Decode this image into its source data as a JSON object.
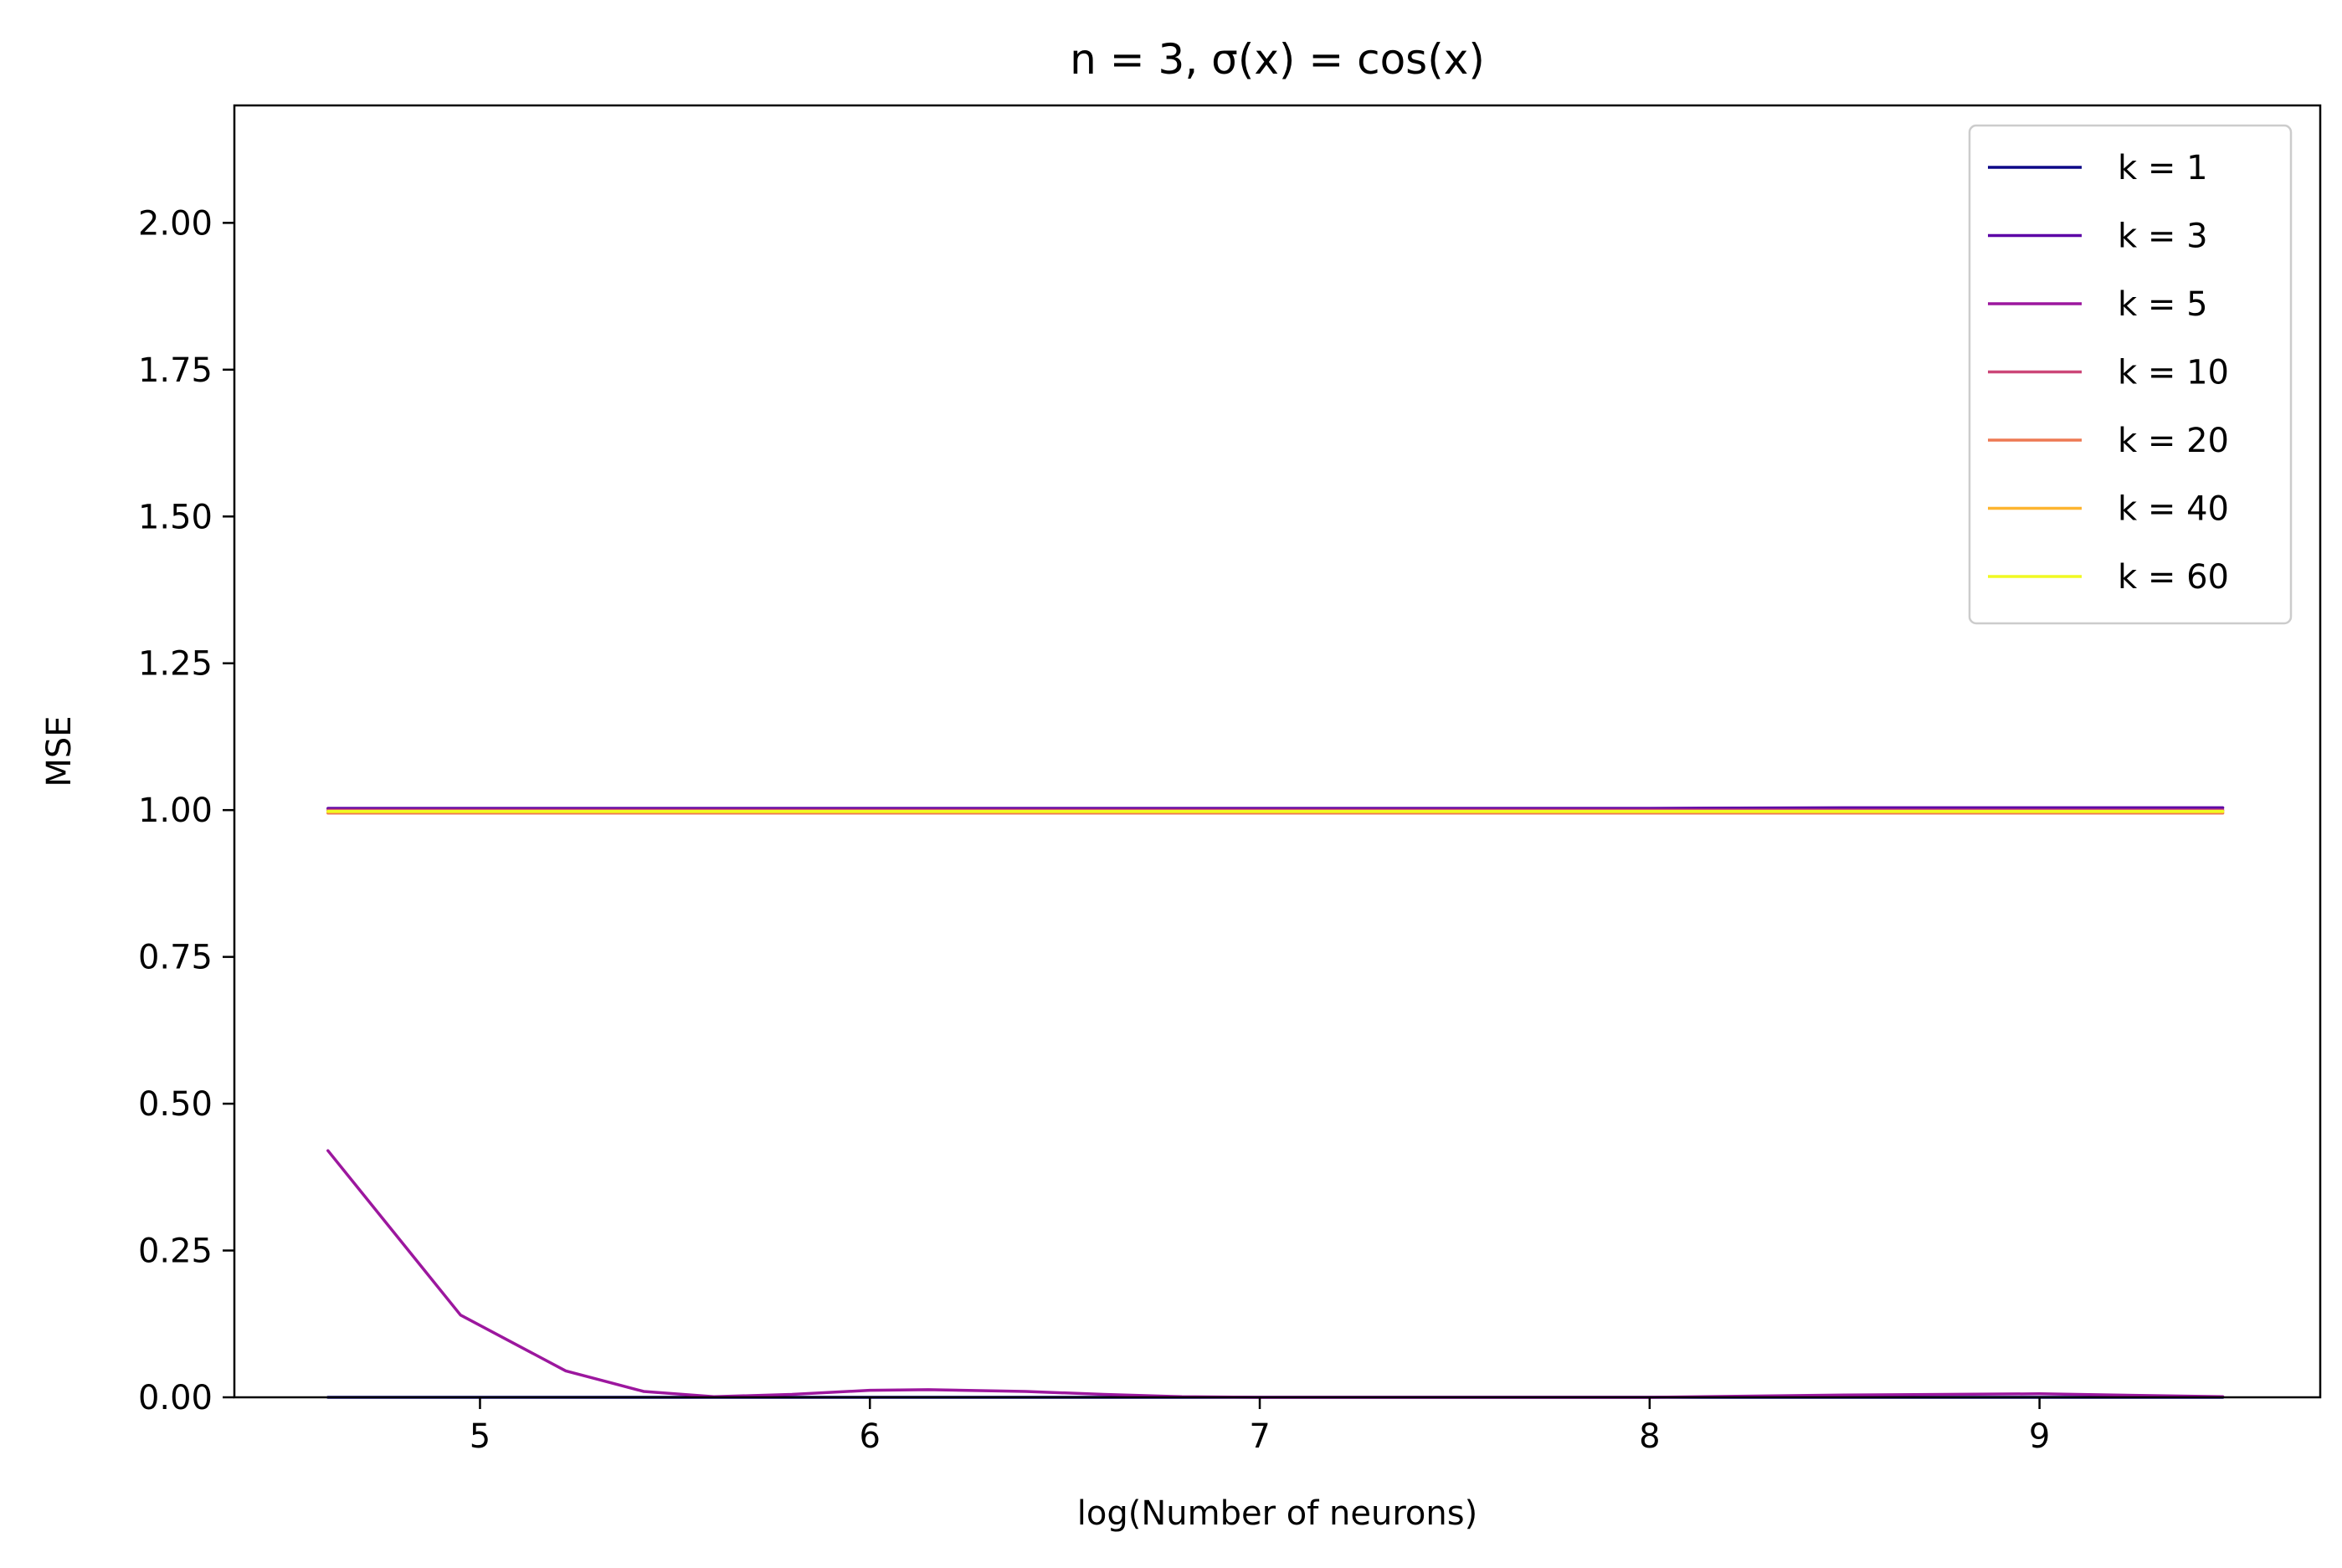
{
  "chart_data": {
    "type": "line",
    "title": "n = 3, σ(x) = cos(x)",
    "xlabel": "log(Number of neurons)",
    "ylabel": "MSE",
    "xlim": [
      4.37,
      9.72
    ],
    "ylim": [
      0,
      2.2
    ],
    "x_ticks": [
      5,
      6,
      7,
      8,
      9
    ],
    "x_tick_labels": [
      "5",
      "6",
      "7",
      "8",
      "9"
    ],
    "y_ticks": [
      0,
      0.25,
      0.5,
      0.75,
      1.0,
      1.25,
      1.5,
      1.75,
      2.0
    ],
    "y_tick_labels": [
      "0.00",
      "0.25",
      "0.50",
      "0.75",
      "1.00",
      "1.25",
      "1.50",
      "1.75",
      "2.00"
    ],
    "grid": false,
    "legend_position": "top-right",
    "x": [
      4.61,
      4.95,
      5.22,
      5.42,
      5.6,
      5.8,
      6.0,
      6.15,
      6.4,
      6.6,
      6.8,
      7.0,
      7.5,
      8.0,
      8.5,
      9.0,
      9.47
    ],
    "series": [
      {
        "name": "k = 1",
        "color": "#0d0887",
        "values": [
          0,
          0,
          0,
          0,
          0,
          0,
          0,
          0,
          0,
          0,
          0,
          0,
          0,
          0,
          0,
          0,
          0
        ]
      },
      {
        "name": "k = 3",
        "color": "#5c01a6",
        "values": [
          1.003,
          1.003,
          1.003,
          1.003,
          1.003,
          1.003,
          1.003,
          1.003,
          1.003,
          1.003,
          1.003,
          1.003,
          1.003,
          1.003,
          1.004,
          1.004,
          1.004
        ]
      },
      {
        "name": "k = 5",
        "color": "#9c179e",
        "values": [
          0.42,
          0.14,
          0.045,
          0.01,
          0.001,
          0.005,
          0.012,
          0.013,
          0.01,
          0.005,
          0.001,
          0.0,
          0.0,
          0.0,
          0.004,
          0.006,
          0.001
        ]
      },
      {
        "name": "k = 10",
        "color": "#cc4778",
        "values": [
          1.0,
          1.0,
          1.0,
          1.0,
          1.0,
          1.0,
          1.0,
          1.0,
          1.0,
          1.0,
          1.0,
          1.0,
          1.0,
          1.0,
          1.0,
          1.0,
          1.0
        ]
      },
      {
        "name": "k = 20",
        "color": "#ed7953",
        "values": [
          0.995,
          0.995,
          0.995,
          0.995,
          0.995,
          0.995,
          0.995,
          0.995,
          0.995,
          0.995,
          0.995,
          0.995,
          0.995,
          0.995,
          0.995,
          0.995,
          0.995
        ]
      },
      {
        "name": "k = 40",
        "color": "#fdb42f",
        "values": [
          0.997,
          0.997,
          0.997,
          0.997,
          0.997,
          0.997,
          0.997,
          0.997,
          0.997,
          0.997,
          0.997,
          0.997,
          0.997,
          0.997,
          0.997,
          0.997,
          0.997
        ]
      },
      {
        "name": "k = 60",
        "color": "#f0f921",
        "values": [
          0.998,
          0.998,
          0.998,
          0.998,
          0.998,
          0.998,
          0.998,
          0.998,
          0.998,
          0.998,
          0.998,
          0.998,
          0.998,
          0.998,
          0.998,
          0.998,
          0.998
        ]
      }
    ]
  }
}
